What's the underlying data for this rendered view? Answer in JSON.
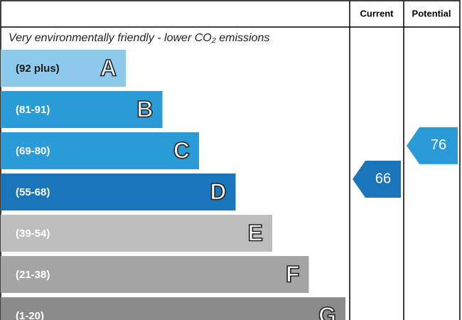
{
  "chart_data": {
    "type": "epc",
    "title": "Very environmentally friendly - lower CO₂ emissions",
    "columns": [
      "Current",
      "Potential"
    ],
    "bands": [
      {
        "label": "(92 plus)",
        "letter": "A",
        "color": "#8dc9ea"
      },
      {
        "label": "(81-91)",
        "letter": "B",
        "color": "#2b9bd8"
      },
      {
        "label": "(69-80)",
        "letter": "C",
        "color": "#2b9bd8"
      },
      {
        "label": "(55-68)",
        "letter": "D",
        "color": "#1b75ba"
      },
      {
        "label": "(39-54)",
        "letter": "E",
        "color": "#bdbdbd"
      },
      {
        "label": "(21-38)",
        "letter": "F",
        "color": "#a4a4a4"
      },
      {
        "label": "(1-20)",
        "letter": "G",
        "color": "#8b8b8b"
      }
    ],
    "values": [
      66,
      76
    ]
  }
}
